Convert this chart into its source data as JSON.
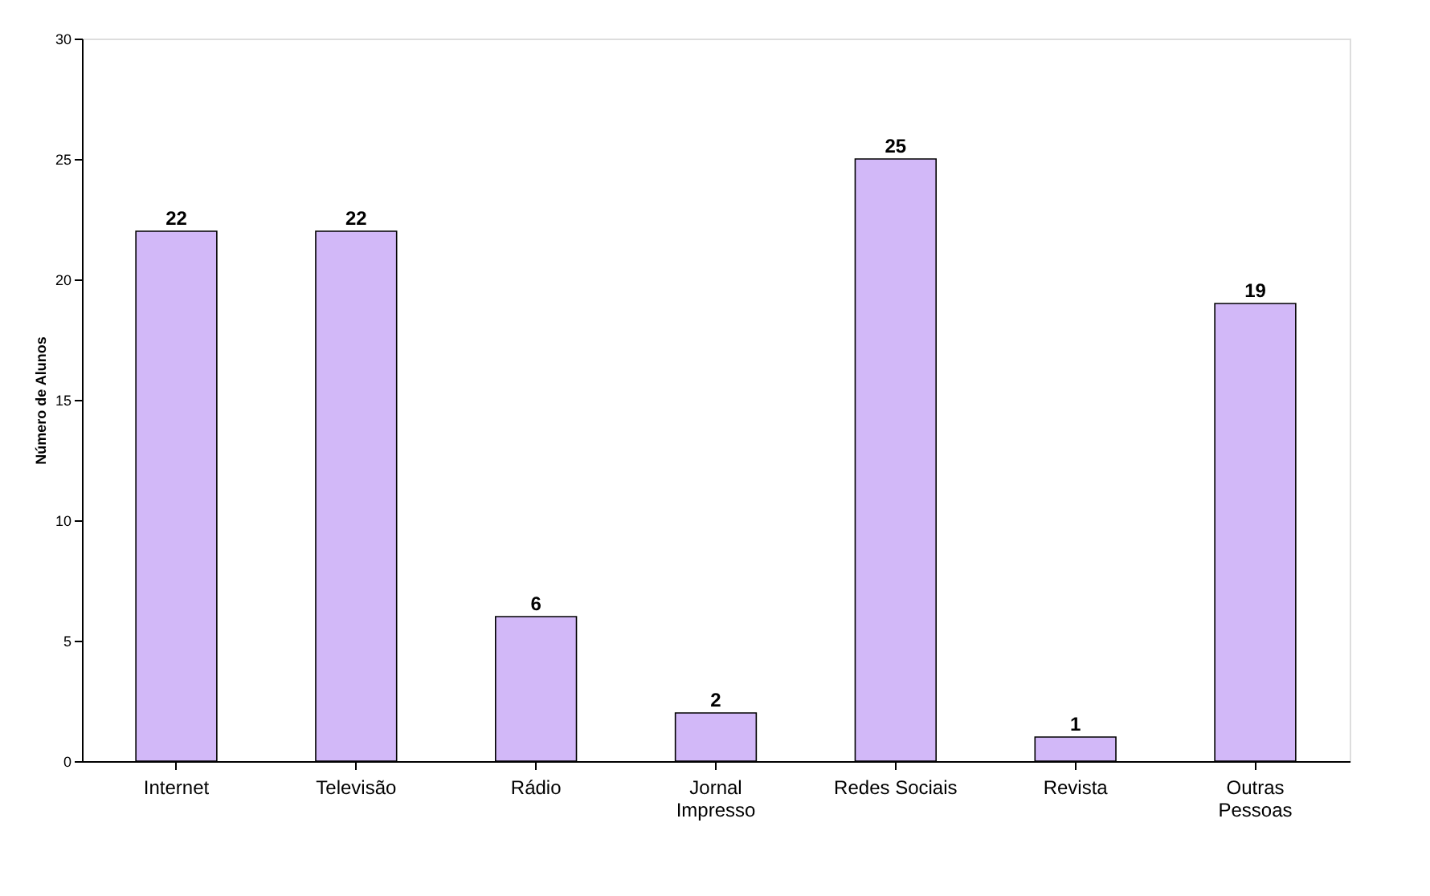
{
  "chart_data": {
    "type": "bar",
    "ylabel": "Número de Alunos",
    "categories": [
      "Internet",
      "Televisão",
      "Rádio",
      "Jornal\nImpresso",
      "Redes Sociais",
      "Revista",
      "Outras\nPessoas"
    ],
    "values": [
      22,
      22,
      6,
      2,
      25,
      1,
      19
    ],
    "color": "#d2b8f8",
    "ylim": [
      0,
      30
    ],
    "yticks": [
      0,
      5,
      10,
      15,
      20,
      25,
      30
    ],
    "grid": false,
    "data_labels": true
  }
}
